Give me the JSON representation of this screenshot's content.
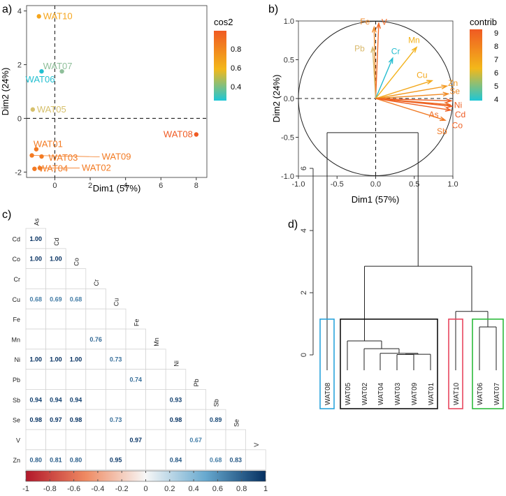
{
  "chart_data": [
    {
      "type": "scatter",
      "panel_label": "a)",
      "xlabel": "Dim1 (57%)",
      "ylabel": "Dim2 (24%)",
      "xlim": [
        -1.6,
        8.6
      ],
      "ylim": [
        -2.2,
        4.2
      ],
      "xticks": [
        0,
        2,
        4,
        6,
        8
      ],
      "yticks": [
        -2,
        0,
        2,
        4
      ],
      "points": [
        {
          "label": "WAT10",
          "x": -0.9,
          "y": 3.8,
          "cos2": 0.65,
          "color": "#f5a51c"
        },
        {
          "label": "WAT07",
          "x": 0.4,
          "y": 1.75,
          "cos2": 0.4,
          "color": "#8fbf9a"
        },
        {
          "label": "WAT06",
          "x": -0.75,
          "y": 1.75,
          "cos2": 0.27,
          "color": "#22bfd0"
        },
        {
          "label": "WAT05",
          "x": -1.25,
          "y": 0.33,
          "cos2": 0.5,
          "color": "#d6c06c"
        },
        {
          "label": "WAT08",
          "x": 8.0,
          "y": -0.6,
          "cos2": 0.95,
          "color": "#f05a22"
        },
        {
          "label": "WAT01",
          "x": -1.05,
          "y": -1.15,
          "cos2": 0.82,
          "color": "#f37a22"
        },
        {
          "label": "WAT03",
          "x": -0.75,
          "y": -1.42,
          "cos2": 0.82,
          "color": "#f37a22"
        },
        {
          "label": "WAT09",
          "x": -1.3,
          "y": -1.38,
          "cos2": 0.82,
          "color": "#f37a22"
        },
        {
          "label": "WAT04",
          "x": -1.15,
          "y": -1.88,
          "cos2": 0.85,
          "color": "#f37a22"
        },
        {
          "label": "WAT02",
          "x": -0.85,
          "y": -1.85,
          "cos2": 0.8,
          "color": "#f37a22"
        }
      ],
      "legend": {
        "title": "cos2",
        "ticks": [
          "0.8",
          "0.6",
          "0.4"
        ]
      }
    },
    {
      "type": "variable-correlation-circle",
      "panel_label": "b)",
      "xlabel": "Dim1 (57%)",
      "ylabel": "Dim2 (24%)",
      "xlim": [
        -1.0,
        1.0
      ],
      "ylim": [
        -1.0,
        1.0
      ],
      "xticks": [
        "-1.0",
        "-0.5",
        "0.0",
        "0.5",
        "1.0"
      ],
      "yticks": [
        "-1.0",
        "-0.5",
        "0.0",
        "0.5",
        "1.0"
      ],
      "arrows": [
        {
          "label": "Fe",
          "x": -0.02,
          "y": 0.92,
          "color": "#f08a2a"
        },
        {
          "label": "V",
          "x": 0.04,
          "y": 0.97,
          "color": "#f26a26"
        },
        {
          "label": "Pb",
          "x": -0.04,
          "y": 0.66,
          "color": "#d9b86a"
        },
        {
          "label": "Cr",
          "x": 0.22,
          "y": 0.52,
          "color": "#25bdd0"
        },
        {
          "label": "Mn",
          "x": 0.53,
          "y": 0.66,
          "color": "#f3b21b"
        },
        {
          "label": "Cu",
          "x": 0.73,
          "y": 0.23,
          "color": "#f3a81c"
        },
        {
          "label": "Zn",
          "x": 0.92,
          "y": 0.16,
          "color": "#f39a20"
        },
        {
          "label": "Se",
          "x": 0.94,
          "y": 0.06,
          "color": "#f08a24"
        },
        {
          "label": "Ni",
          "x": 0.98,
          "y": -0.03,
          "color": "#ee5f22"
        },
        {
          "label": "Cd",
          "x": 0.99,
          "y": -0.1,
          "color": "#ee5a22"
        },
        {
          "label": "As",
          "x": 0.96,
          "y": -0.08,
          "color": "#ee6a22"
        },
        {
          "label": "Co",
          "x": 0.97,
          "y": -0.15,
          "color": "#ee6022"
        },
        {
          "label": "Sb",
          "x": 0.9,
          "y": -0.28,
          "color": "#f07a24"
        }
      ],
      "legend": {
        "title": "contrib",
        "ticks": [
          "9",
          "8",
          "7",
          "6",
          "5",
          "4"
        ]
      }
    },
    {
      "type": "heatmap",
      "panel_label": "c)",
      "columns": [
        "As",
        "Cd",
        "Co",
        "Cr",
        "Cu",
        "Fe",
        "Mn",
        "Ni",
        "Pb",
        "Sb",
        "Se",
        "V"
      ],
      "rows": [
        "Cd",
        "Co",
        "Cr",
        "Cu",
        "Fe",
        "Mn",
        "Ni",
        "Pb",
        "Sb",
        "Se",
        "V",
        "Zn"
      ],
      "values": [
        [
          "1.00"
        ],
        [
          "1.00",
          "1.00"
        ],
        [
          "",
          "",
          ""
        ],
        [
          "0.68",
          "0.69",
          "0.68",
          ""
        ],
        [
          "",
          "",
          "",
          "",
          ""
        ],
        [
          "",
          "",
          "",
          "0.76",
          "",
          ""
        ],
        [
          "1.00",
          "1.00",
          "1.00",
          "",
          "0.73",
          "",
          ""
        ],
        [
          "",
          "",
          "",
          "",
          "",
          "0.74",
          "",
          ""
        ],
        [
          "0.94",
          "0.94",
          "0.94",
          "",
          "",
          "",
          "",
          "0.93",
          ""
        ],
        [
          "0.98",
          "0.97",
          "0.98",
          "",
          "0.73",
          "",
          "",
          "0.98",
          "",
          "0.89"
        ],
        [
          "",
          "",
          "",
          "",
          "",
          "0.97",
          "",
          "",
          "0.67",
          "",
          ""
        ],
        [
          "0.80",
          "0.81",
          "0.80",
          "",
          "0.95",
          "",
          "",
          "0.84",
          "",
          "0.68",
          "0.83",
          ""
        ]
      ],
      "colorbar": {
        "ticks": [
          "-1",
          "-0.8",
          "-0.6",
          "-0.4",
          "-0.2",
          "0",
          "0.2",
          "0.4",
          "0.6",
          "0.8",
          "1"
        ]
      }
    },
    {
      "type": "dendrogram",
      "panel_label": "d)",
      "yticks": [
        0,
        2,
        4,
        6
      ],
      "leaves": [
        "WAT08",
        "WAT05",
        "WAT02",
        "WAT04",
        "WAT03",
        "WAT09",
        "WAT01",
        "WAT10",
        "WAT06",
        "WAT07"
      ],
      "merges": [
        {
          "a": "WAT03",
          "b": "WAT09",
          "height": 0.01
        },
        {
          "a": "WAT03-09",
          "b": "WAT01",
          "height": 0.02
        },
        {
          "a": "WAT04",
          "b": "WAT03-09-01",
          "height": 0.05
        },
        {
          "a": "WAT02",
          "b": "WAT04-group",
          "height": 0.2
        },
        {
          "a": "WAT05",
          "b": "WAT02-group",
          "height": 0.45
        },
        {
          "a": "WAT06",
          "b": "WAT07",
          "height": 0.9
        },
        {
          "a": "WAT10",
          "b": "WAT06-07",
          "height": 1.4
        },
        {
          "a": "orange-cluster",
          "b": "WAT10-06-07",
          "height": 2.85
        },
        {
          "a": "WAT08",
          "b": "rest",
          "height": 7.15
        }
      ],
      "cluster_boxes": [
        {
          "members": [
            "WAT08"
          ],
          "color": "#2aa3dc"
        },
        {
          "members": [
            "WAT05",
            "WAT02",
            "WAT04",
            "WAT03",
            "WAT09",
            "WAT01"
          ],
          "color": "#111111"
        },
        {
          "members": [
            "WAT10"
          ],
          "color": "#e8465e"
        },
        {
          "members": [
            "WAT06",
            "WAT07"
          ],
          "color": "#2dbb3c"
        }
      ]
    }
  ]
}
